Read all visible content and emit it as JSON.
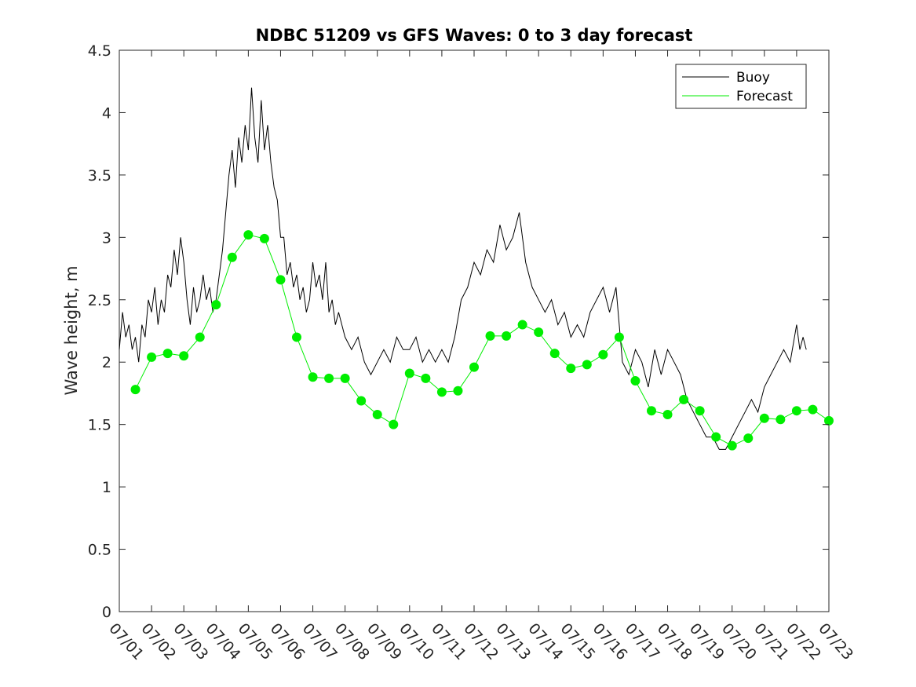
{
  "chart_data": {
    "type": "line",
    "title": "NDBC 51209 vs GFS Waves: 0 to 3 day forecast",
    "xlabel": "",
    "ylabel": "Wave height, m",
    "xlim": [
      0,
      22
    ],
    "ylim": [
      0,
      4.5
    ],
    "yticks": [
      0,
      0.5,
      1,
      1.5,
      2,
      2.5,
      3,
      3.5,
      4,
      4.5
    ],
    "xticks": [
      0,
      1,
      2,
      3,
      4,
      5,
      6,
      7,
      8,
      9,
      10,
      11,
      12,
      13,
      14,
      15,
      16,
      17,
      18,
      19,
      20,
      21,
      22
    ],
    "xtick_labels": [
      "07/01",
      "07/02",
      "07/03",
      "07/04",
      "07/05",
      "07/06",
      "07/07",
      "07/08",
      "07/09",
      "07/10",
      "07/11",
      "07/12",
      "07/13",
      "07/14",
      "07/15",
      "07/16",
      "07/17",
      "07/18",
      "07/19",
      "07/20",
      "07/21",
      "07/22",
      "07/23"
    ],
    "grid": false,
    "legend": "top-right",
    "series": [
      {
        "name": "Buoy",
        "color": "#000000",
        "style": "line",
        "x": [
          0.0,
          0.1,
          0.2,
          0.3,
          0.4,
          0.5,
          0.6,
          0.7,
          0.8,
          0.9,
          1.0,
          1.1,
          1.2,
          1.3,
          1.4,
          1.5,
          1.6,
          1.7,
          1.8,
          1.9,
          2.0,
          2.1,
          2.2,
          2.3,
          2.4,
          2.5,
          2.6,
          2.7,
          2.8,
          2.9,
          3.0,
          3.1,
          3.2,
          3.3,
          3.4,
          3.5,
          3.6,
          3.7,
          3.8,
          3.9,
          4.0,
          4.1,
          4.2,
          4.3,
          4.4,
          4.5,
          4.6,
          4.7,
          4.8,
          4.9,
          5.0,
          5.1,
          5.2,
          5.3,
          5.4,
          5.5,
          5.6,
          5.7,
          5.8,
          5.9,
          6.0,
          6.1,
          6.2,
          6.3,
          6.4,
          6.5,
          6.6,
          6.7,
          6.8,
          6.9,
          7.0,
          7.2,
          7.4,
          7.6,
          7.8,
          8.0,
          8.2,
          8.4,
          8.6,
          8.8,
          9.0,
          9.2,
          9.4,
          9.6,
          9.8,
          10.0,
          10.2,
          10.4,
          10.6,
          10.8,
          11.0,
          11.2,
          11.4,
          11.6,
          11.8,
          12.0,
          12.2,
          12.4,
          12.6,
          12.8,
          13.0,
          13.2,
          13.4,
          13.6,
          13.8,
          14.0,
          14.2,
          14.4,
          14.6,
          14.8,
          15.0,
          15.2,
          15.4,
          15.6,
          15.8,
          16.0,
          16.2,
          16.4,
          16.6,
          16.8,
          17.0,
          17.2,
          17.4,
          17.6,
          17.8,
          18.0,
          18.2,
          18.4,
          18.6,
          18.8,
          19.0,
          19.2,
          19.4,
          19.6,
          19.8,
          20.0,
          20.2,
          20.4,
          20.6,
          20.8,
          21.0,
          21.1,
          21.2,
          21.3
        ],
        "y": [
          2.1,
          2.4,
          2.2,
          2.3,
          2.1,
          2.2,
          2.0,
          2.3,
          2.2,
          2.5,
          2.4,
          2.6,
          2.3,
          2.5,
          2.4,
          2.7,
          2.6,
          2.9,
          2.7,
          3.0,
          2.8,
          2.5,
          2.3,
          2.6,
          2.4,
          2.5,
          2.7,
          2.5,
          2.6,
          2.4,
          2.5,
          2.7,
          2.9,
          3.2,
          3.5,
          3.7,
          3.4,
          3.8,
          3.6,
          3.9,
          3.7,
          4.2,
          3.8,
          3.6,
          4.1,
          3.7,
          3.9,
          3.6,
          3.4,
          3.3,
          3.0,
          3.0,
          2.7,
          2.8,
          2.6,
          2.7,
          2.5,
          2.6,
          2.4,
          2.5,
          2.8,
          2.6,
          2.7,
          2.5,
          2.8,
          2.4,
          2.5,
          2.3,
          2.4,
          2.3,
          2.2,
          2.1,
          2.2,
          2.0,
          1.9,
          2.0,
          2.1,
          2.0,
          2.2,
          2.1,
          2.1,
          2.2,
          2.0,
          2.1,
          2.0,
          2.1,
          2.0,
          2.2,
          2.5,
          2.6,
          2.8,
          2.7,
          2.9,
          2.8,
          3.1,
          2.9,
          3.0,
          3.2,
          2.8,
          2.6,
          2.5,
          2.4,
          2.5,
          2.3,
          2.4,
          2.2,
          2.3,
          2.2,
          2.4,
          2.5,
          2.6,
          2.4,
          2.6,
          2.0,
          1.9,
          2.1,
          2.0,
          1.8,
          2.1,
          1.9,
          2.1,
          2.0,
          1.9,
          1.7,
          1.6,
          1.5,
          1.4,
          1.4,
          1.3,
          1.3,
          1.4,
          1.5,
          1.6,
          1.7,
          1.6,
          1.8,
          1.9,
          2.0,
          2.1,
          2.0,
          2.3,
          2.1,
          2.2,
          2.1
        ]
      },
      {
        "name": "Forecast",
        "color": "#00ee00",
        "style": "line+markers",
        "x": [
          0.5,
          1.0,
          1.5,
          2.0,
          2.5,
          3.0,
          3.5,
          4.0,
          4.5,
          5.0,
          5.5,
          6.0,
          6.5,
          7.0,
          7.5,
          8.0,
          8.5,
          9.0,
          9.5,
          10.0,
          10.5,
          11.0,
          11.5,
          12.0,
          12.5,
          13.0,
          13.5,
          14.0,
          14.5,
          15.0,
          15.5,
          16.0,
          16.5,
          17.0,
          17.5,
          18.0,
          18.5,
          19.0,
          19.5,
          20.0,
          20.5,
          21.0,
          21.5,
          22.0
        ],
        "y": [
          1.78,
          2.04,
          2.07,
          2.05,
          2.2,
          2.46,
          2.84,
          3.02,
          2.99,
          2.66,
          2.2,
          1.88,
          1.87,
          1.87,
          1.69,
          1.58,
          1.5,
          1.91,
          1.87,
          1.76,
          1.77,
          1.96,
          2.21,
          2.21,
          2.3,
          2.24,
          2.07,
          1.95,
          1.98,
          2.06,
          2.2,
          1.85,
          1.61,
          1.58,
          1.7,
          1.61,
          1.4,
          1.33,
          1.39,
          1.55,
          1.54,
          1.61,
          1.62,
          1.53
        ]
      }
    ]
  }
}
